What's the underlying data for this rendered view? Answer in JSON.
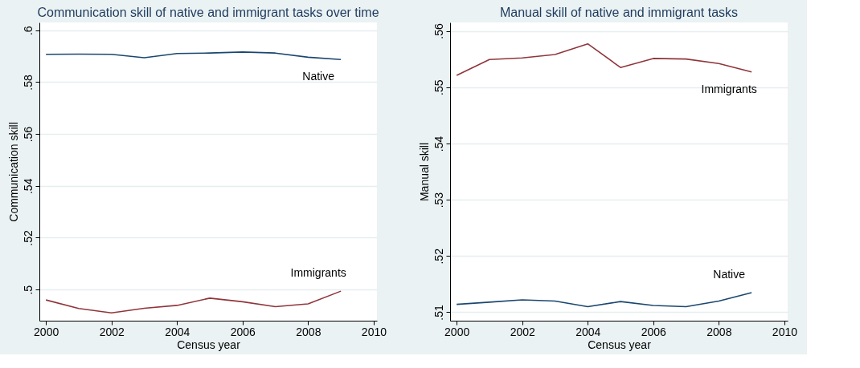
{
  "chart_data": [
    {
      "type": "line",
      "title": "Communication skill of native and immigrant tasks over time",
      "xlabel": "Census year",
      "ylabel": "Communication skill",
      "x": [
        2000,
        2001,
        2002,
        2003,
        2004,
        2005,
        2006,
        2007,
        2008,
        2009
      ],
      "series": [
        {
          "name": "Native",
          "color": "#1a476f",
          "values": [
            0.5907,
            0.5908,
            0.5907,
            0.5894,
            0.591,
            0.5912,
            0.5916,
            0.5912,
            0.5896,
            0.5887
          ]
        },
        {
          "name": "Immigrants",
          "color": "#90353b",
          "values": [
            0.496,
            0.4927,
            0.491,
            0.4928,
            0.4939,
            0.4967,
            0.4953,
            0.4934,
            0.4945,
            0.4994
          ]
        }
      ],
      "xlim": [
        1999.8,
        2010.1
      ],
      "xticks": [
        2000,
        2002,
        2004,
        2006,
        2008,
        2010
      ],
      "ylim": [
        0.488,
        0.603
      ],
      "yticks": [
        {
          "value": 0.5,
          "label": ".5"
        },
        {
          "value": 0.52,
          "label": ".52"
        },
        {
          "value": 0.54,
          "label": ".54"
        },
        {
          "value": 0.56,
          "label": ".56"
        },
        {
          "value": 0.58,
          "label": ".58"
        },
        {
          "value": 0.6,
          "label": ".6"
        }
      ],
      "grid": "y",
      "legend": false,
      "marker": "none",
      "line_style": "solid"
    },
    {
      "type": "line",
      "title": "Manual skill of native and immigrant tasks",
      "xlabel": "Census year",
      "ylabel": "Manual skill",
      "x": [
        2000,
        2001,
        2002,
        2003,
        2004,
        2005,
        2006,
        2007,
        2008,
        2009
      ],
      "series": [
        {
          "name": "Immigrants",
          "color": "#90353b",
          "values": [
            0.5521,
            0.5549,
            0.5552,
            0.5558,
            0.5577,
            0.5535,
            0.5551,
            0.555,
            0.5542,
            0.5527
          ]
        },
        {
          "name": "Native",
          "color": "#1a476f",
          "values": [
            0.5114,
            0.5118,
            0.5122,
            0.512,
            0.511,
            0.5119,
            0.5112,
            0.511,
            0.512,
            0.5135
          ]
        }
      ],
      "xlim": [
        1999.8,
        2010.1
      ],
      "xticks": [
        2000,
        2002,
        2004,
        2006,
        2008,
        2010
      ],
      "ylim": [
        0.5085,
        0.5615
      ],
      "yticks": [
        {
          "value": 0.51,
          "label": ".51"
        },
        {
          "value": 0.52,
          "label": ".52"
        },
        {
          "value": 0.53,
          "label": ".53"
        },
        {
          "value": 0.54,
          "label": ".54"
        },
        {
          "value": 0.55,
          "label": ".55"
        },
        {
          "value": 0.56,
          "label": ".56"
        }
      ],
      "grid": "y",
      "legend": false,
      "marker": "none",
      "line_style": "solid"
    }
  ]
}
